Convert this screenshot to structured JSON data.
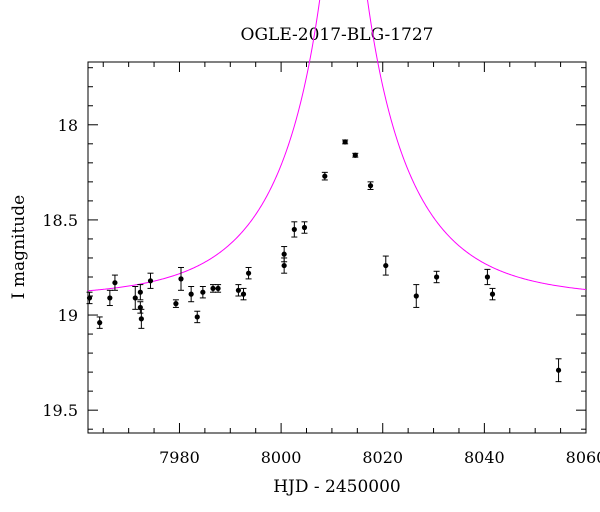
{
  "chart_data": {
    "type": "scatter",
    "title": "OGLE-2017-BLG-1727",
    "xlabel": "HJD - 2450000",
    "ylabel": "I magnitude",
    "xlim": [
      7962,
      8060
    ],
    "ylim": [
      19.62,
      17.67
    ],
    "y_inverted": true,
    "x_ticks": [
      7980,
      8000,
      8020,
      8040,
      8060
    ],
    "y_ticks": [
      18,
      18.5,
      19,
      19.5
    ],
    "x_tick_labels": [
      "7980",
      "8000",
      "8020",
      "8040",
      "8060"
    ],
    "y_tick_labels": [
      "18",
      "18.5",
      "19",
      "19.5"
    ],
    "grid": false,
    "model_color": "#ff00ff",
    "point_color": "#000000",
    "model": {
      "t0": 8012.3,
      "u0": 0.09,
      "tE": 21,
      "baseline": 18.91
    },
    "points": [
      {
        "x": 7962.3,
        "y": 18.91,
        "err": 0.03
      },
      {
        "x": 7964.3,
        "y": 19.04,
        "err": 0.03
      },
      {
        "x": 7966.3,
        "y": 18.91,
        "err": 0.04
      },
      {
        "x": 7967.3,
        "y": 18.83,
        "err": 0.04
      },
      {
        "x": 7971.3,
        "y": 18.91,
        "err": 0.06
      },
      {
        "x": 7972.3,
        "y": 18.88,
        "err": 0.04
      },
      {
        "x": 7972.3,
        "y": 18.96,
        "err": 0.03
      },
      {
        "x": 7972.5,
        "y": 19.02,
        "err": 0.05
      },
      {
        "x": 7974.3,
        "y": 18.82,
        "err": 0.04
      },
      {
        "x": 7979.3,
        "y": 18.94,
        "err": 0.02
      },
      {
        "x": 7980.3,
        "y": 18.81,
        "err": 0.06
      },
      {
        "x": 7982.3,
        "y": 18.89,
        "err": 0.04
      },
      {
        "x": 7983.5,
        "y": 19.01,
        "err": 0.03
      },
      {
        "x": 7984.6,
        "y": 18.88,
        "err": 0.03
      },
      {
        "x": 7986.6,
        "y": 18.86,
        "err": 0.02
      },
      {
        "x": 7987.6,
        "y": 18.86,
        "err": 0.02
      },
      {
        "x": 7991.6,
        "y": 18.87,
        "err": 0.03
      },
      {
        "x": 7992.6,
        "y": 18.89,
        "err": 0.03
      },
      {
        "x": 7993.6,
        "y": 18.78,
        "err": 0.03
      },
      {
        "x": 8000.6,
        "y": 18.74,
        "err": 0.04
      },
      {
        "x": 8000.6,
        "y": 18.68,
        "err": 0.04
      },
      {
        "x": 8002.6,
        "y": 18.55,
        "err": 0.04
      },
      {
        "x": 8004.6,
        "y": 18.54,
        "err": 0.03
      },
      {
        "x": 8008.6,
        "y": 18.27,
        "err": 0.02
      },
      {
        "x": 8012.6,
        "y": 18.09,
        "err": 0.01
      },
      {
        "x": 8014.6,
        "y": 18.16,
        "err": 0.01
      },
      {
        "x": 8017.6,
        "y": 18.32,
        "err": 0.02
      },
      {
        "x": 8020.6,
        "y": 18.74,
        "err": 0.05
      },
      {
        "x": 8026.6,
        "y": 18.9,
        "err": 0.06
      },
      {
        "x": 8030.6,
        "y": 18.8,
        "err": 0.03
      },
      {
        "x": 8040.6,
        "y": 18.8,
        "err": 0.04
      },
      {
        "x": 8041.6,
        "y": 18.89,
        "err": 0.03
      },
      {
        "x": 8054.6,
        "y": 19.29,
        "err": 0.06
      }
    ]
  }
}
